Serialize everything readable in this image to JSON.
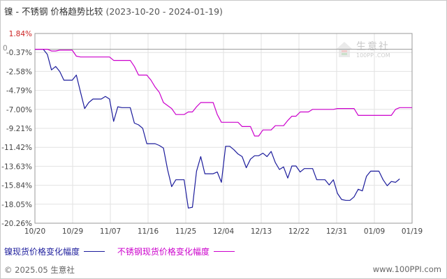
{
  "title": {
    "text": "镍 - 不锈钢 价格趋势比较",
    "range": "(2023-10-20 - 2024-01-19)"
  },
  "watermark": {
    "cn": "生意社",
    "en": "100PPI.COM"
  },
  "footer": {
    "left": "© 2025.05 生意社",
    "right": "www.100PPI.com"
  },
  "colors": {
    "nickel": "#1c1c9c",
    "stainless": "#cc00cc",
    "grid": "#e2e2e2",
    "axis": "#999999",
    "zero_label": "#888888",
    "top_label": "#cc2222",
    "tick_text": "#444444"
  },
  "chart_data": {
    "type": "line",
    "title": "镍 - 不锈钢 价格趋势比较",
    "x_range": [
      "2023-10-20",
      "2024-01-19"
    ],
    "x_tick_labels": [
      "10/20",
      "10/29",
      "11/07",
      "11/16",
      "11/25",
      "12/04",
      "12/13",
      "12/22",
      "12/31",
      "01/09",
      "01/19"
    ],
    "y_tick_labels": [
      "1.84%",
      "-0.37%",
      "-2.58%",
      "-4.79%",
      "-7.00%",
      "-9.21%",
      "-11.42%",
      "-13.63%",
      "-15.84%",
      "-18.05%",
      "-20.26%"
    ],
    "y_zero_label": "0",
    "ylim": [
      -20.26,
      1.84
    ],
    "grid": true,
    "legend_position": "bottom-left",
    "series": [
      {
        "name": "镍现货价格变化幅度",
        "color_key": "nickel",
        "points": [
          [
            "2023-10-20",
            0
          ],
          [
            "2023-10-22",
            0
          ],
          [
            "2023-10-23",
            -0.6
          ],
          [
            "2023-10-24",
            -2.4
          ],
          [
            "2023-10-25",
            -2.0
          ],
          [
            "2023-10-26",
            -2.6
          ],
          [
            "2023-10-27",
            -3.6
          ],
          [
            "2023-10-29",
            -3.6
          ],
          [
            "2023-10-30",
            -3.0
          ],
          [
            "2023-10-31",
            -5.0
          ],
          [
            "2023-11-01",
            -6.9
          ],
          [
            "2023-11-02",
            -6.2
          ],
          [
            "2023-11-03",
            -5.8
          ],
          [
            "2023-11-05",
            -5.8
          ],
          [
            "2023-11-06",
            -5.5
          ],
          [
            "2023-11-07",
            -5.8
          ],
          [
            "2023-11-08",
            -8.4
          ],
          [
            "2023-11-09",
            -6.7
          ],
          [
            "2023-11-10",
            -6.8
          ],
          [
            "2023-11-12",
            -6.8
          ],
          [
            "2023-11-13",
            -8.6
          ],
          [
            "2023-11-14",
            -8.8
          ],
          [
            "2023-11-15",
            -9.2
          ],
          [
            "2023-11-16",
            -11.0
          ],
          [
            "2023-11-17",
            -11.0
          ],
          [
            "2023-11-18",
            -11.0
          ],
          [
            "2023-11-19",
            -11.2
          ],
          [
            "2023-11-20",
            -11.5
          ],
          [
            "2023-11-21",
            -14.0
          ],
          [
            "2023-11-22",
            -16.0
          ],
          [
            "2023-11-23",
            -15.2
          ],
          [
            "2023-11-24",
            -15.2
          ],
          [
            "2023-11-25",
            -15.2
          ],
          [
            "2023-11-26",
            -18.5
          ],
          [
            "2023-11-27",
            -18.4
          ],
          [
            "2023-11-28",
            -14.2
          ],
          [
            "2023-11-29",
            -12.5
          ],
          [
            "2023-11-30",
            -14.5
          ],
          [
            "2023-12-01",
            -14.5
          ],
          [
            "2023-12-02",
            -14.5
          ],
          [
            "2023-12-03",
            -14.3
          ],
          [
            "2023-12-04",
            -15.5
          ],
          [
            "2023-12-05",
            -11.3
          ],
          [
            "2023-12-06",
            -11.3
          ],
          [
            "2023-12-07",
            -11.7
          ],
          [
            "2023-12-08",
            -12.2
          ],
          [
            "2023-12-09",
            -12.5
          ],
          [
            "2023-12-10",
            -13.8
          ],
          [
            "2023-12-11",
            -12.8
          ],
          [
            "2023-12-12",
            -12.4
          ],
          [
            "2023-12-13",
            -12.4
          ],
          [
            "2023-12-14",
            -12.1
          ],
          [
            "2023-12-15",
            -12.5
          ],
          [
            "2023-12-16",
            -11.9
          ],
          [
            "2023-12-17",
            -13.2
          ],
          [
            "2023-12-18",
            -14.0
          ],
          [
            "2023-12-19",
            -13.7
          ],
          [
            "2023-12-20",
            -15.0
          ],
          [
            "2023-12-21",
            -13.6
          ],
          [
            "2023-12-22",
            -13.6
          ],
          [
            "2023-12-23",
            -14.3
          ],
          [
            "2023-12-24",
            -13.9
          ],
          [
            "2023-12-25",
            -13.9
          ],
          [
            "2023-12-26",
            -13.9
          ],
          [
            "2023-12-27",
            -15.2
          ],
          [
            "2023-12-28",
            -15.2
          ],
          [
            "2023-12-29",
            -15.2
          ],
          [
            "2023-12-30",
            -15.8
          ],
          [
            "2023-12-31",
            -15.2
          ],
          [
            "2024-01-01",
            -16.8
          ],
          [
            "2024-01-02",
            -17.5
          ],
          [
            "2024-01-03",
            -17.6
          ],
          [
            "2024-01-04",
            -17.6
          ],
          [
            "2024-01-05",
            -17.2
          ],
          [
            "2024-01-06",
            -16.3
          ],
          [
            "2024-01-07",
            -16.5
          ],
          [
            "2024-01-08",
            -14.8
          ],
          [
            "2024-01-09",
            -14.2
          ],
          [
            "2024-01-10",
            -14.2
          ],
          [
            "2024-01-11",
            -14.2
          ],
          [
            "2024-01-12",
            -15.2
          ],
          [
            "2024-01-13",
            -15.9
          ],
          [
            "2024-01-14",
            -15.4
          ],
          [
            "2024-01-15",
            -15.5
          ],
          [
            "2024-01-16",
            -15.1
          ]
        ]
      },
      {
        "name": "不锈钢现货价格变化幅度",
        "color_key": "stainless",
        "points": [
          [
            "2023-10-20",
            0
          ],
          [
            "2023-10-23",
            0
          ],
          [
            "2023-10-24",
            -0.2
          ],
          [
            "2023-10-25",
            -0.2
          ],
          [
            "2023-10-26",
            -0.1
          ],
          [
            "2023-10-29",
            -0.1
          ],
          [
            "2023-10-30",
            -0.8
          ],
          [
            "2023-10-31",
            -0.9
          ],
          [
            "2023-11-07",
            -0.9
          ],
          [
            "2023-11-08",
            -1.3
          ],
          [
            "2023-11-12",
            -1.3
          ],
          [
            "2023-11-13",
            -2.0
          ],
          [
            "2023-11-14",
            -3.0
          ],
          [
            "2023-11-16",
            -3.0
          ],
          [
            "2023-11-17",
            -3.6
          ],
          [
            "2023-11-18",
            -4.4
          ],
          [
            "2023-11-19",
            -5.0
          ],
          [
            "2023-11-20",
            -6.2
          ],
          [
            "2023-11-22",
            -6.9
          ],
          [
            "2023-11-23",
            -7.6
          ],
          [
            "2023-11-25",
            -7.6
          ],
          [
            "2023-11-26",
            -7.3
          ],
          [
            "2023-11-27",
            -7.3
          ],
          [
            "2023-11-28",
            -6.7
          ],
          [
            "2023-11-29",
            -6.2
          ],
          [
            "2023-12-02",
            -6.2
          ],
          [
            "2023-12-03",
            -7.6
          ],
          [
            "2023-12-04",
            -8.5
          ],
          [
            "2023-12-08",
            -8.5
          ],
          [
            "2023-12-09",
            -9.0
          ],
          [
            "2023-12-11",
            -9.0
          ],
          [
            "2023-12-12",
            -10.1
          ],
          [
            "2023-12-13",
            -10.1
          ],
          [
            "2023-12-14",
            -9.4
          ],
          [
            "2023-12-16",
            -9.4
          ],
          [
            "2023-12-17",
            -8.9
          ],
          [
            "2023-12-19",
            -8.9
          ],
          [
            "2023-12-20",
            -8.3
          ],
          [
            "2023-12-21",
            -7.8
          ],
          [
            "2023-12-22",
            -7.8
          ],
          [
            "2023-12-23",
            -7.3
          ],
          [
            "2023-12-25",
            -7.3
          ],
          [
            "2023-12-26",
            -7.0
          ],
          [
            "2023-12-31",
            -7.0
          ],
          [
            "2024-01-01",
            -6.9
          ],
          [
            "2024-01-05",
            -6.9
          ],
          [
            "2024-01-06",
            -7.7
          ],
          [
            "2024-01-14",
            -7.7
          ],
          [
            "2024-01-15",
            -7.0
          ],
          [
            "2024-01-16",
            -6.8
          ],
          [
            "2024-01-19",
            -6.8
          ]
        ]
      }
    ]
  }
}
